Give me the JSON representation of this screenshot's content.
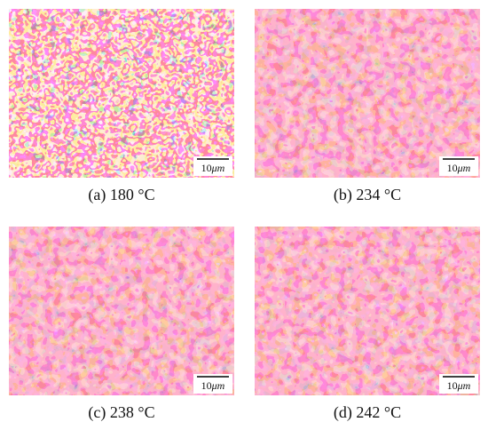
{
  "panels": [
    {
      "caption": "(a) 180 °C",
      "scale_bar": {
        "number": "10",
        "unit": "μm"
      }
    },
    {
      "caption": "(b) 234 °C",
      "scale_bar": {
        "number": "10",
        "unit": "μm"
      }
    },
    {
      "caption": "(c) 238 °C",
      "scale_bar": {
        "number": "10",
        "unit": "μm"
      }
    },
    {
      "caption": "(d) 242 °C",
      "scale_bar": {
        "number": "10",
        "unit": "μm"
      }
    }
  ]
}
